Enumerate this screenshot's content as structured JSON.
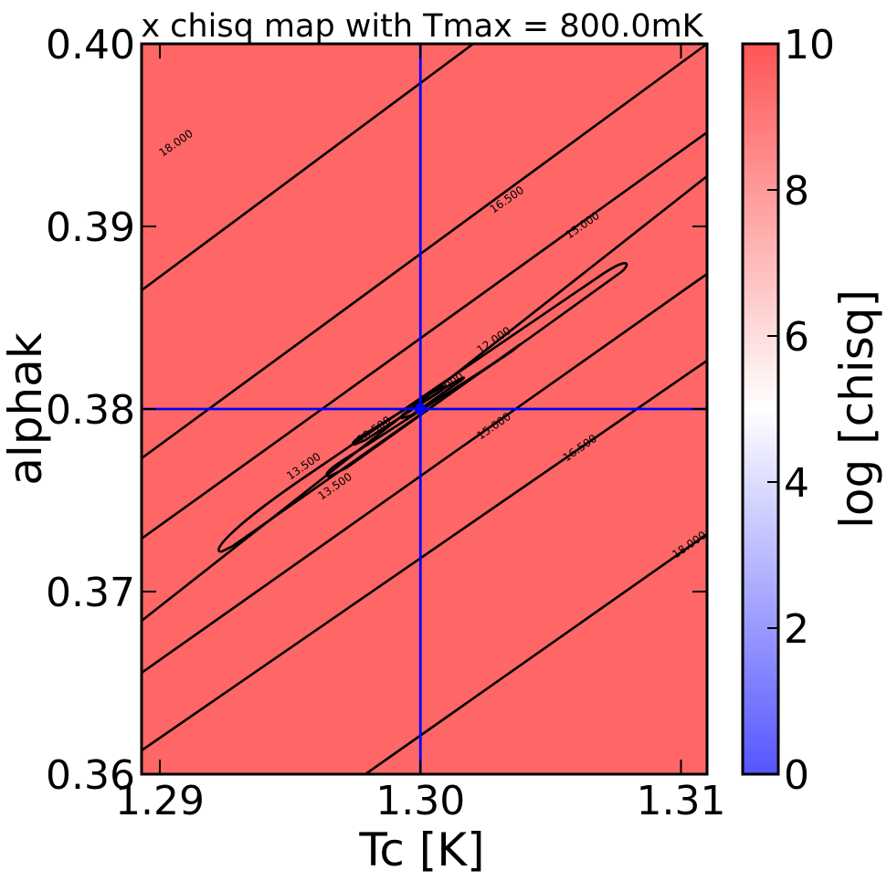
{
  "chart_data": {
    "type": "contour",
    "title": "x chisq map with Tmax = 800.0mK",
    "xlabel": "Tc [K]",
    "ylabel": "alphak",
    "xlim": [
      1.2893,
      1.311
    ],
    "ylim": [
      0.36,
      0.4
    ],
    "x_ticks": [
      1.29,
      1.3,
      1.31
    ],
    "x_tick_labels": [
      "1.29",
      "1.30",
      "1.31"
    ],
    "y_ticks": [
      0.36,
      0.37,
      0.38,
      0.39,
      0.4
    ],
    "y_tick_labels": [
      "0.36",
      "0.37",
      "0.38",
      "0.39",
      "0.40"
    ],
    "background_color": "#ff6666",
    "grid": false,
    "crosshair": {
      "x": 1.3,
      "y": 0.38,
      "color": "#0000ff"
    },
    "minimum_marker": {
      "x": 1.3,
      "y": 0.38,
      "color": "#0000ff"
    },
    "contour_levels": [
      9.0,
      10.5,
      12.0,
      13.5,
      15.0,
      16.5,
      18.0
    ],
    "contour_labels": [
      {
        "text": "18.000",
        "x": 1.2907,
        "y": 0.3944
      },
      {
        "text": "16.500",
        "x": 1.3034,
        "y": 0.3913
      },
      {
        "text": "15.000",
        "x": 1.3063,
        "y": 0.3899
      },
      {
        "text": "12.000",
        "x": 1.3029,
        "y": 0.3836
      },
      {
        "text": "9.000",
        "x": 1.3012,
        "y": 0.3812
      },
      {
        "text": "10.500",
        "x": 1.2983,
        "y": 0.3787
      },
      {
        "text": "13.500",
        "x": 1.2956,
        "y": 0.3767
      },
      {
        "text": "13.500",
        "x": 1.2968,
        "y": 0.3756
      },
      {
        "text": "15.000",
        "x": 1.3029,
        "y": 0.3789
      },
      {
        "text": "16.500",
        "x": 1.3062,
        "y": 0.3777
      },
      {
        "text": "18.000",
        "x": 1.3104,
        "y": 0.3724
      }
    ],
    "colorbar": {
      "label": "log [chisq]",
      "min": 0,
      "max": 10,
      "ticks": [
        0,
        2,
        4,
        6,
        8,
        10
      ],
      "tick_labels": [
        "0",
        "2",
        "4",
        "6",
        "8",
        "10"
      ],
      "colors": {
        "low": "#5555ff",
        "mid": "#ffffff",
        "high": "#ff5555"
      }
    }
  }
}
